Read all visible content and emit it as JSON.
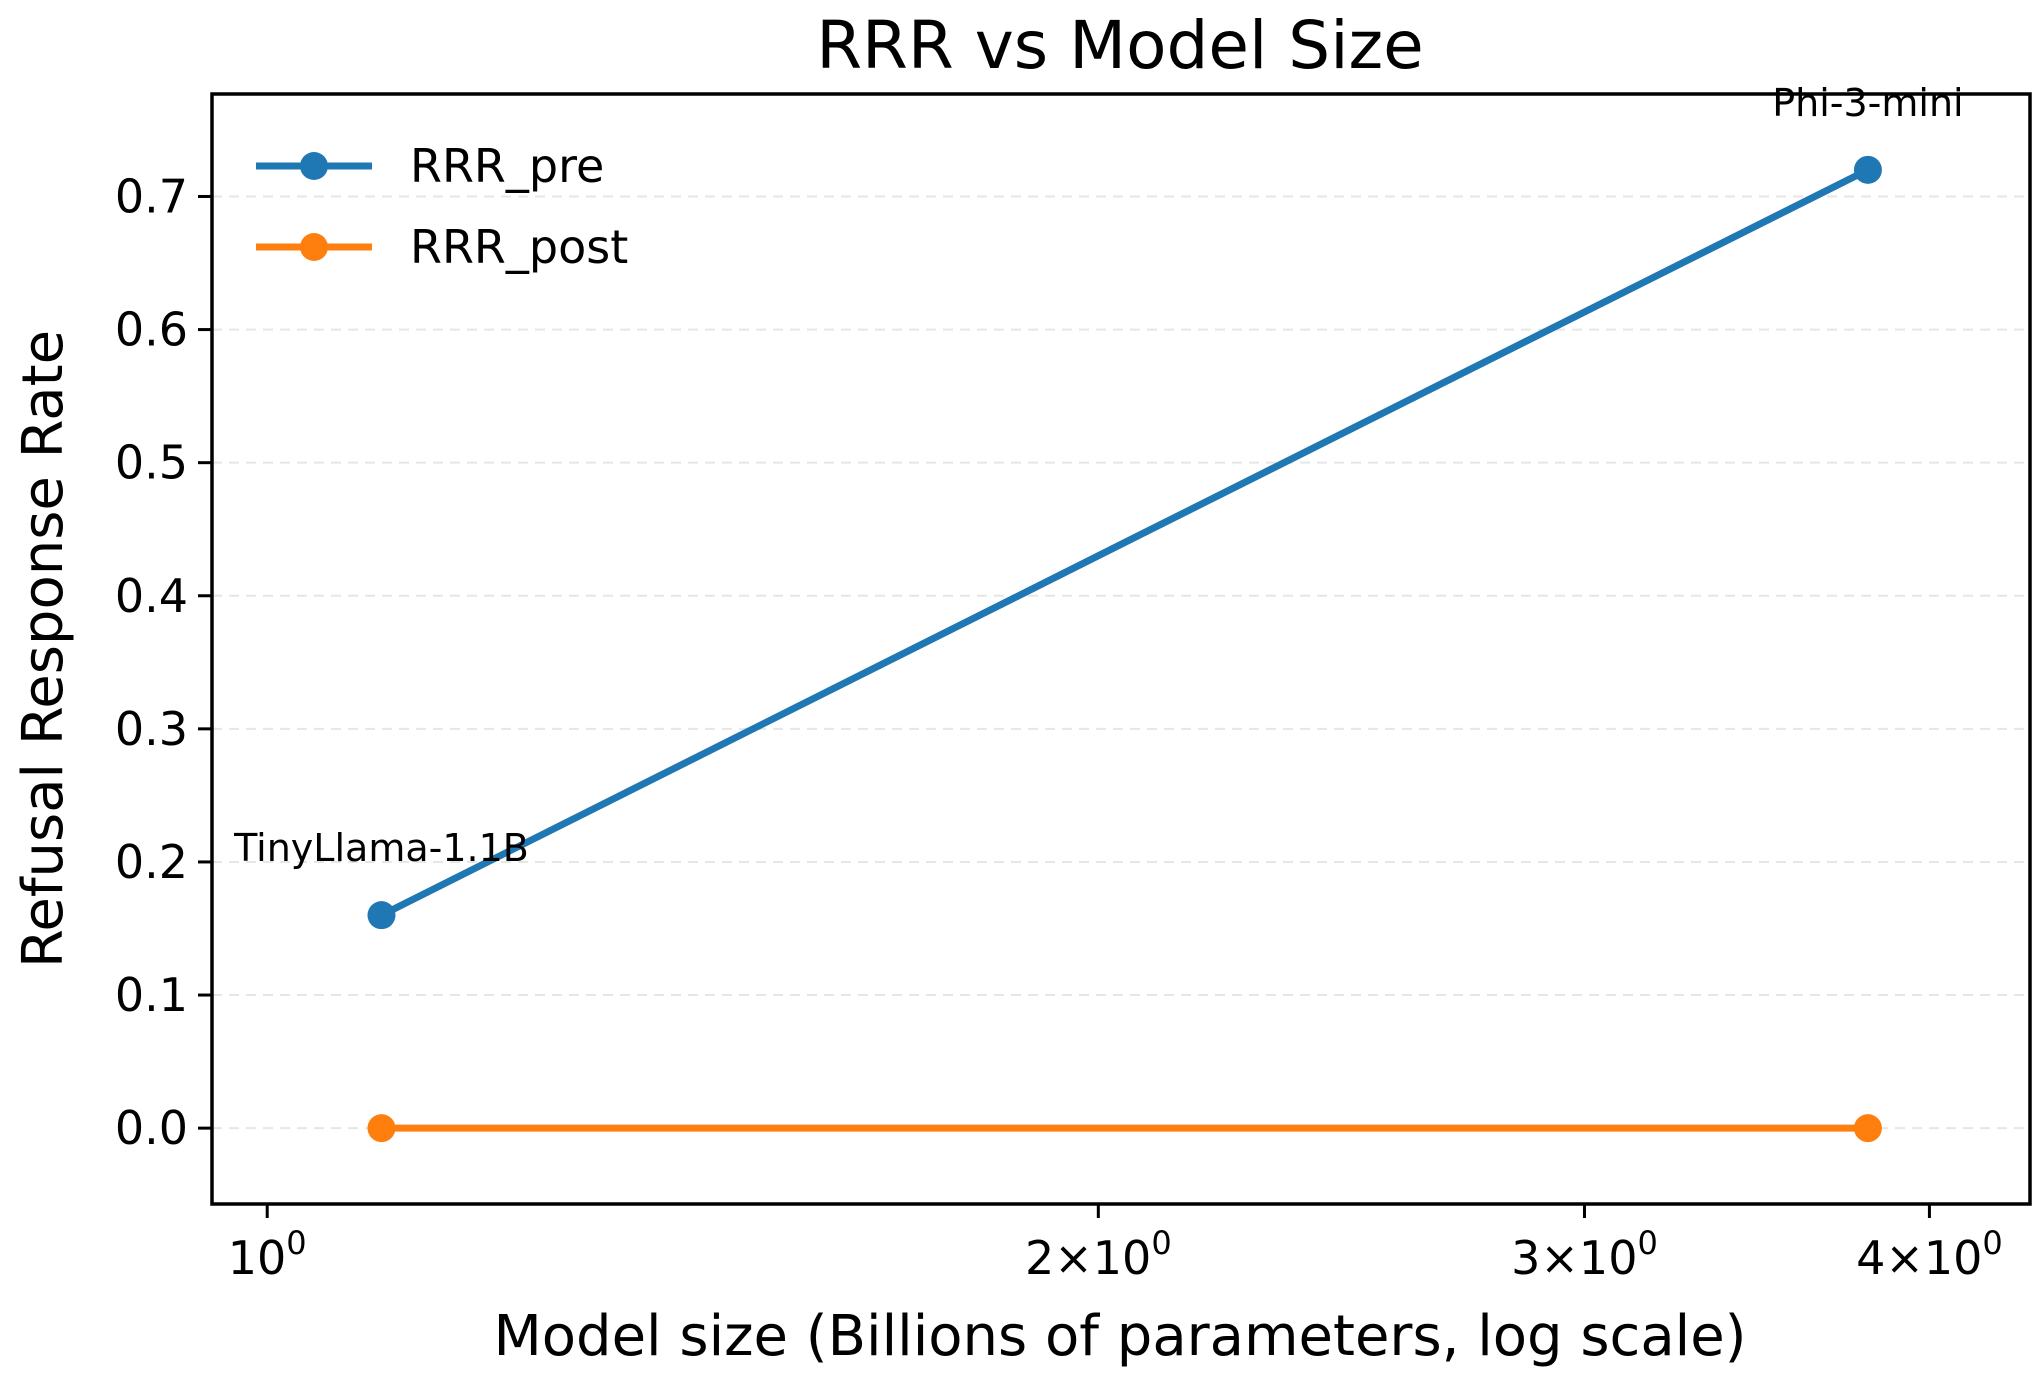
{
  "chart_data": {
    "type": "line",
    "title": "RRR vs Model Size",
    "xlabel": "Model size (Billions of parameters, log scale)",
    "ylabel": "Refusal Response Rate",
    "xscale": "log",
    "xlim": [
      0.955,
      4.35
    ],
    "ylim": [
      -0.057,
      0.777
    ],
    "x": [
      1.1,
      3.8
    ],
    "series": [
      {
        "name": "RRR_pre",
        "values": [
          0.16,
          0.72
        ],
        "color": "#1f77b4"
      },
      {
        "name": "RRR_post",
        "values": [
          0.0,
          0.0
        ],
        "color": "#ff7f0e"
      }
    ],
    "annotations": [
      {
        "text": "TinyLlama-1.1B",
        "x": 1.1,
        "y": 0.16
      },
      {
        "text": "Phi-3-mini",
        "x": 3.8,
        "y": 0.72
      }
    ],
    "y_ticks": [
      0.0,
      0.1,
      0.2,
      0.3,
      0.4,
      0.5,
      0.6,
      0.7
    ],
    "y_tick_labels": [
      "0.0",
      "0.1",
      "0.2",
      "0.3",
      "0.4",
      "0.5",
      "0.6",
      "0.7"
    ],
    "x_ticks": [
      {
        "value": 1,
        "mantissa": "",
        "base": "10",
        "exp": "0"
      },
      {
        "value": 2,
        "mantissa": "2×",
        "base": "10",
        "exp": "0"
      },
      {
        "value": 3,
        "mantissa": "3×",
        "base": "10",
        "exp": "0"
      },
      {
        "value": 4,
        "mantissa": "4×",
        "base": "10",
        "exp": "0"
      }
    ],
    "grid": "y-dashed",
    "legend_position": "top-left"
  }
}
